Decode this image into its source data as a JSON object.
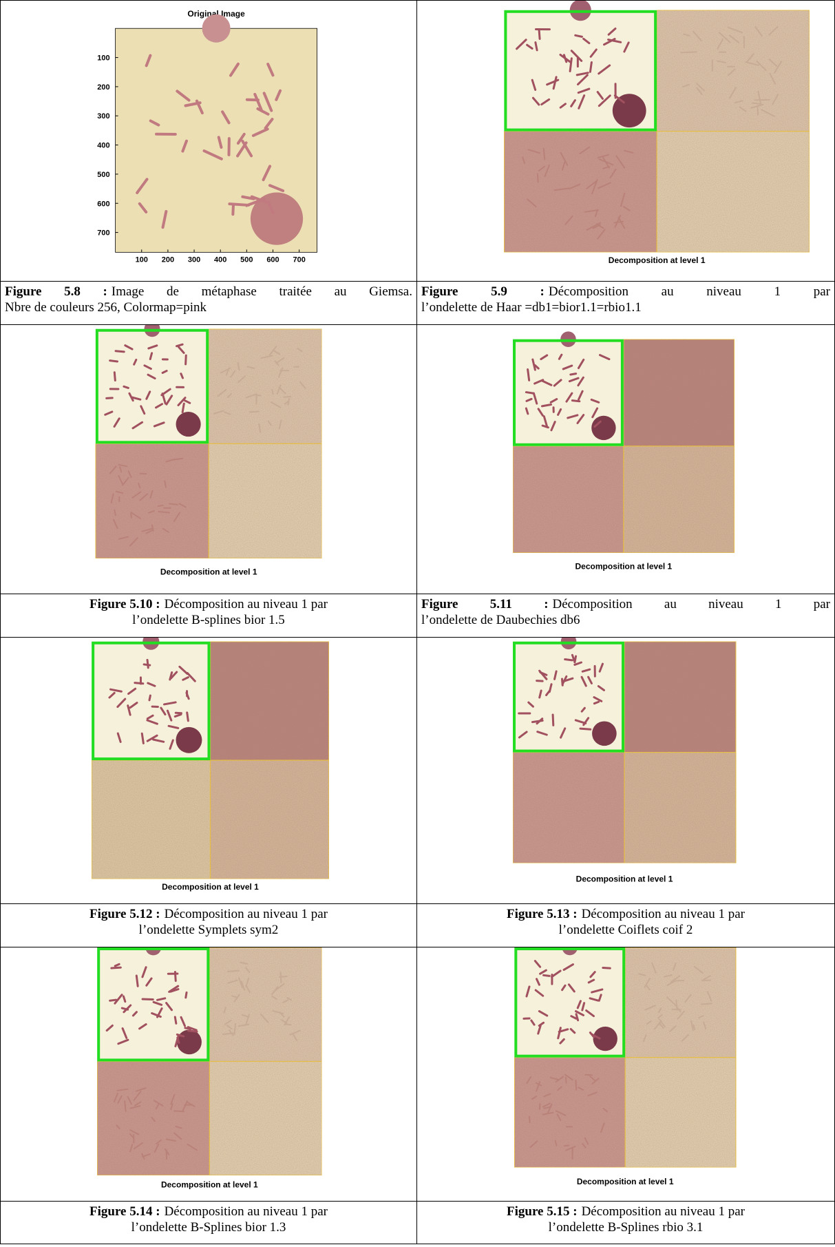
{
  "figures": [
    {
      "image": {
        "title": "Original Image",
        "yticks": [
          100,
          200,
          300,
          400,
          500,
          600,
          700
        ],
        "xticks": [
          100,
          200,
          300,
          400,
          500,
          600,
          700
        ],
        "xlim": [
          0,
          768
        ],
        "ylim": [
          0,
          768
        ]
      },
      "caption": {
        "label": "Figure 5.8 :",
        "lines": [
          "Image de métaphase traitée au Giemsa.",
          "Nbre de couleurs 256, Colormap=pink"
        ],
        "align": "justify"
      }
    },
    {
      "image": {
        "title": "Decomposition at level 1"
      },
      "caption": {
        "label": "Figure 5.9 :",
        "lines": [
          "Décomposition au niveau 1 par",
          "l’ondelette de Haar =db1=bior1.1=rbio1.1"
        ],
        "align": "justify"
      }
    },
    {
      "image": {
        "title": "Decomposition at level 1"
      },
      "caption": {
        "label": "Figure 5.10 :",
        "lines": [
          "Décomposition au niveau 1 par",
          "l’ondelette B-splines bior 1.5"
        ],
        "align": "center"
      }
    },
    {
      "image": {
        "title": "Decomposition at level 1"
      },
      "caption": {
        "label": "Figure 5.11 :",
        "lines": [
          "Décomposition au niveau 1 par",
          "l’ondelette de Daubechies db6"
        ],
        "align": "justify"
      }
    },
    {
      "image": {
        "title": "Decomposition at level 1"
      },
      "caption": {
        "label": "Figure 5.12 :",
        "lines": [
          "Décomposition au niveau 1 par",
          "l’ondelette Symplets sym2"
        ],
        "align": "center"
      }
    },
    {
      "image": {
        "title": "Decomposition at level 1"
      },
      "caption": {
        "label": "Figure 5.13 :",
        "lines": [
          "Décomposition au niveau 1 par",
          "l’ondelette Coiflets coif 2"
        ],
        "align": "center"
      }
    },
    {
      "image": {
        "title": "Decomposition at level 1"
      },
      "caption": {
        "label": "Figure 5.14 :",
        "lines": [
          "Décomposition au niveau 1 par",
          "l’ondelette B-Splines bior 1.3"
        ],
        "align": "center"
      }
    },
    {
      "image": {
        "title": "Decomposition at level 1"
      },
      "caption": {
        "label": "Figure 5.15 :",
        "lines": [
          "Décomposition au niveau 1 par",
          "l’ondelette B-Splines rbio 3.1"
        ],
        "align": "center"
      }
    }
  ]
}
